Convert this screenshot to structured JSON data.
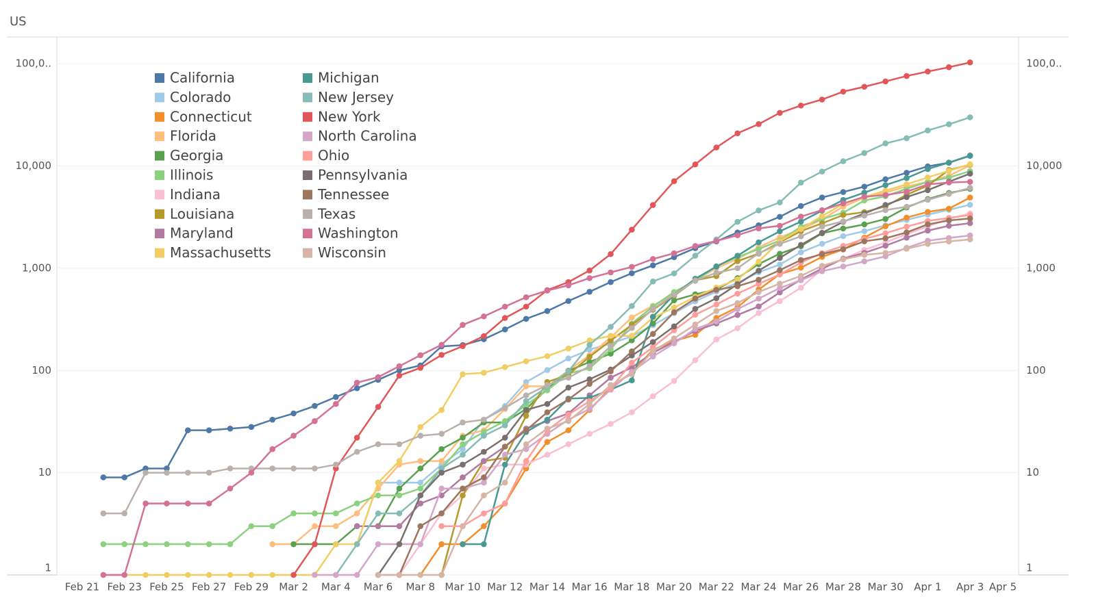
{
  "chart_data": {
    "type": "line",
    "title": "US",
    "y_scale": "log",
    "grid": true,
    "legend_position": "upper left",
    "ylim": [
      1,
      180000
    ],
    "yticks": [
      1,
      10,
      100,
      {
        "value": 1000,
        "label": "1,000"
      },
      {
        "value": 10000,
        "label": "10,000"
      },
      {
        "value": 100000,
        "label": "100,0.."
      }
    ],
    "categories": [
      "Feb 21",
      null,
      "Feb 23",
      null,
      "Feb 25",
      null,
      "Feb 27",
      null,
      "Feb 29",
      null,
      "Mar 2",
      null,
      "Mar 4",
      null,
      "Mar 6",
      null,
      "Mar 8",
      null,
      "Mar 10",
      null,
      "Mar 12",
      null,
      "Mar 14",
      null,
      "Mar 16",
      null,
      "Mar 18",
      null,
      "Mar 20",
      null,
      "Mar 22",
      null,
      "Mar 24",
      null,
      "Mar 26",
      null,
      "Mar 28",
      null,
      "Mar 30",
      null,
      "Apr 1",
      null,
      "Apr 3",
      null,
      "Apr 5"
    ],
    "series": [
      {
        "name": "California",
        "color": "#4e79a7",
        "values": [
          null,
          9,
          9,
          11,
          11,
          26,
          26,
          27,
          28,
          33,
          38,
          45,
          55,
          67,
          81,
          100,
          112,
          172,
          177,
          202,
          252,
          320,
          381,
          478,
          588,
          732,
          893,
          1067,
          1283,
          1571,
          1829,
          2236,
          2628,
          3183,
          4060,
          4914,
          5565,
          6284,
          7421,
          8582,
          9907,
          10773,
          12569,
          null,
          null
        ]
      },
      {
        "name": "Colorado",
        "color": "#a0cbe8",
        "values": [
          null,
          null,
          null,
          null,
          null,
          null,
          null,
          null,
          null,
          null,
          null,
          null,
          null,
          2,
          8,
          8,
          8,
          12,
          17,
          33,
          45,
          77,
          101,
          131,
          160,
          183,
          216,
          277,
          363,
          475,
          591,
          720,
          912,
          1086,
          1430,
          1734,
          2061,
          2307,
          2627,
          2966,
          3342,
          3728,
          4173,
          null,
          null
        ]
      },
      {
        "name": "Connecticut",
        "color": "#f28e2b",
        "values": [
          null,
          null,
          null,
          null,
          null,
          null,
          null,
          null,
          null,
          null,
          null,
          null,
          null,
          null,
          null,
          null,
          1,
          2,
          2,
          3,
          5,
          11,
          20,
          26,
          41,
          68,
          96,
          159,
          194,
          223,
          327,
          415,
          618,
          875,
          1012,
          1291,
          1524,
          1993,
          2571,
          3128,
          3557,
          3824,
          4914,
          null,
          null
        ]
      },
      {
        "name": "Florida",
        "color": "#ffbe7d",
        "values": [
          null,
          null,
          null,
          null,
          null,
          null,
          null,
          null,
          null,
          2,
          2,
          3,
          3,
          4,
          7,
          12,
          13,
          13,
          23,
          26,
          42,
          70,
          70,
          100,
          141,
          210,
          330,
          430,
          560,
          760,
          1000,
          1230,
          1600,
          2000,
          2400,
          3000,
          4000,
          4900,
          5500,
          6300,
          7000,
          8000,
          10200,
          null,
          null
        ]
      },
      {
        "name": "Georgia",
        "color": "#59a14f",
        "values": [
          null,
          null,
          null,
          null,
          null,
          null,
          null,
          null,
          null,
          null,
          2,
          2,
          2,
          3,
          3,
          7,
          11,
          17,
          22,
          31,
          31,
          42,
          66,
          99,
          121,
          146,
          197,
          287,
          485,
          555,
          620,
          800,
          1097,
          1387,
          1643,
          2198,
          2446,
          2683,
          3032,
          3929,
          4748,
          5444,
          5967,
          null,
          null
        ]
      },
      {
        "name": "Illinois",
        "color": "#8cd17d",
        "values": [
          null,
          2,
          2,
          2,
          2,
          2,
          2,
          2,
          3,
          3,
          4,
          4,
          4,
          5,
          6,
          6,
          7,
          11,
          19,
          25,
          32,
          46,
          64,
          93,
          105,
          161,
          288,
          422,
          585,
          753,
          1049,
          1285,
          1537,
          1865,
          2538,
          3024,
          3491,
          4596,
          5057,
          5994,
          6980,
          7695,
          8904,
          null,
          null
        ]
      },
      {
        "name": "Indiana",
        "color": "#fabfd2",
        "values": [
          null,
          null,
          null,
          null,
          null,
          null,
          null,
          null,
          null,
          null,
          null,
          null,
          null,
          null,
          1,
          1,
          2,
          4,
          6,
          11,
          12,
          12,
          15,
          19,
          24,
          30,
          39,
          56,
          79,
          126,
          201,
          259,
          365,
          477,
          645,
          981,
          1233,
          1513,
          1786,
          2159,
          2565,
          3039,
          3437,
          null,
          null
        ]
      },
      {
        "name": "Louisiana",
        "color": "#b6992d",
        "values": [
          null,
          null,
          null,
          null,
          null,
          null,
          null,
          null,
          null,
          null,
          null,
          null,
          null,
          null,
          null,
          null,
          null,
          1,
          6,
          13,
          14,
          36,
          77,
          91,
          136,
          196,
          280,
          392,
          538,
          763,
          837,
          1172,
          1388,
          1795,
          2304,
          2746,
          3315,
          3540,
          4025,
          5237,
          6424,
          9150,
          10297,
          null,
          null
        ]
      },
      {
        "name": "Maryland",
        "color": "#b07aa1",
        "values": [
          null,
          null,
          null,
          null,
          null,
          null,
          null,
          null,
          null,
          null,
          null,
          null,
          null,
          3,
          3,
          3,
          5,
          6,
          9,
          13,
          18,
          27,
          32,
          38,
          57,
          85,
          107,
          149,
          190,
          244,
          288,
          349,
          423,
          580,
          774,
          992,
          1239,
          1413,
          1660,
          1986,
          2331,
          2600,
          2758,
          null,
          null
        ]
      },
      {
        "name": "Massachusetts",
        "color": "#f1ce63",
        "values": [
          null,
          1,
          1,
          1,
          1,
          1,
          1,
          1,
          1,
          1,
          1,
          1,
          2,
          2,
          8,
          13,
          28,
          41,
          92,
          95,
          108,
          123,
          138,
          164,
          197,
          218,
          218,
          328,
          413,
          525,
          646,
          777,
          1159,
          1838,
          2417,
          3240,
          4257,
          4955,
          5752,
          6620,
          7738,
          8966,
          10402,
          null,
          null
        ]
      },
      {
        "name": "Michigan",
        "color": "#499894",
        "values": [
          null,
          null,
          null,
          null,
          null,
          null,
          null,
          null,
          null,
          null,
          null,
          null,
          null,
          null,
          null,
          null,
          null,
          null,
          2,
          2,
          12,
          25,
          33,
          53,
          54,
          65,
          80,
          336,
          549,
          788,
          1037,
          1324,
          1791,
          2294,
          2856,
          3657,
          4650,
          5488,
          6498,
          7615,
          9334,
          10791,
          12670,
          null,
          null
        ]
      },
      {
        "name": "New Jersey",
        "color": "#86bcb6",
        "values": [
          null,
          null,
          null,
          null,
          null,
          null,
          null,
          null,
          null,
          null,
          null,
          null,
          1,
          2,
          4,
          4,
          6,
          11,
          15,
          23,
          29,
          50,
          69,
          98,
          178,
          267,
          427,
          742,
          890,
          1327,
          1914,
          2844,
          3675,
          4402,
          6876,
          8825,
          11124,
          13386,
          16636,
          18696,
          22255,
          25590,
          29895,
          null,
          null
        ]
      },
      {
        "name": "New York",
        "color": "#e15759",
        "values": [
          null,
          null,
          null,
          null,
          null,
          null,
          null,
          null,
          null,
          null,
          1,
          2,
          11,
          22,
          44,
          89,
          106,
          142,
          173,
          217,
          326,
          421,
          610,
          732,
          950,
          1374,
          2382,
          4152,
          7102,
          10356,
          15168,
          20875,
          25665,
          33066,
          38987,
          44635,
          53363,
          59568,
          67174,
          75832,
          83948,
          92506,
          102987,
          null,
          null
        ]
      },
      {
        "name": "North Carolina",
        "color": "#d4a6c8",
        "values": [
          null,
          null,
          null,
          null,
          null,
          null,
          null,
          null,
          null,
          null,
          null,
          1,
          1,
          1,
          2,
          2,
          2,
          7,
          7,
          8,
          15,
          17,
          24,
          33,
          42,
          65,
          97,
          137,
          184,
          255,
          302,
          398,
          504,
          641,
          763,
          935,
          1040,
          1167,
          1307,
          1584,
          1857,
          1977,
          2093,
          null,
          null
        ]
      },
      {
        "name": "Ohio",
        "color": "#ff9d9a",
        "values": [
          null,
          null,
          null,
          null,
          null,
          null,
          null,
          null,
          null,
          null,
          null,
          null,
          null,
          null,
          null,
          null,
          null,
          3,
          3,
          4,
          5,
          13,
          26,
          37,
          50,
          67,
          119,
          169,
          247,
          351,
          442,
          564,
          704,
          867,
          1137,
          1406,
          1653,
          1933,
          2199,
          2547,
          2902,
          3100,
          3312,
          null,
          null
        ]
      },
      {
        "name": "Pennsylvania",
        "color": "#79706e",
        "values": [
          null,
          null,
          null,
          null,
          null,
          null,
          null,
          null,
          null,
          null,
          null,
          null,
          null,
          null,
          1,
          2,
          6,
          10,
          12,
          16,
          22,
          41,
          47,
          68,
          82,
          102,
          140,
          190,
          270,
          400,
          509,
          698,
          946,
          1260,
          1690,
          2218,
          2845,
          3432,
          4155,
          4963,
          5805,
          7016,
          8420,
          null,
          null
        ]
      },
      {
        "name": "Tennessee",
        "color": "#9d7660",
        "values": [
          null,
          null,
          null,
          null,
          null,
          null,
          null,
          null,
          null,
          null,
          null,
          null,
          null,
          null,
          null,
          1,
          3,
          4,
          7,
          9,
          18,
          26,
          39,
          52,
          74,
          98,
          154,
          228,
          371,
          505,
          615,
          667,
          772,
          957,
          1203,
          1373,
          1537,
          1834,
          1960,
          2239,
          2683,
          2933,
          3067,
          null,
          null
        ]
      },
      {
        "name": "Texas",
        "color": "#bab0ac",
        "values": [
          null,
          4,
          4,
          10,
          10,
          10,
          10,
          11,
          11,
          11,
          11,
          11,
          12,
          16,
          19,
          19,
          23,
          24,
          31,
          33,
          43,
          57,
          72,
          85,
          110,
          173,
          260,
          400,
          550,
          760,
          900,
          1000,
          1400,
          1731,
          2052,
          2552,
          2877,
          3266,
          3700,
          3997,
          4669,
          5330,
          6110,
          null,
          null
        ]
      },
      {
        "name": "Washington",
        "color": "#d37295",
        "values": [
          null,
          1,
          1,
          5,
          5,
          5,
          5,
          7,
          10,
          17,
          23,
          32,
          47,
          76,
          86,
          110,
          141,
          178,
          279,
          338,
          421,
          520,
          604,
          680,
          800,
          910,
          1030,
          1230,
          1400,
          1650,
          1850,
          2100,
          2450,
          2600,
          3200,
          3700,
          4300,
          5000,
          5200,
          5600,
          6600,
          6900,
          7000,
          null,
          null
        ]
      },
      {
        "name": "Wisconsin",
        "color": "#d7b5a6",
        "values": [
          null,
          null,
          null,
          null,
          null,
          null,
          null,
          null,
          null,
          null,
          null,
          null,
          null,
          null,
          1,
          1,
          1,
          1,
          3,
          6,
          8,
          19,
          27,
          32,
          47,
          72,
          92,
          155,
          206,
          281,
          381,
          457,
          585,
          707,
          842,
          1055,
          1221,
          1351,
          1412,
          1550,
          1730,
          1830,
          1912,
          null,
          null
        ]
      }
    ]
  }
}
